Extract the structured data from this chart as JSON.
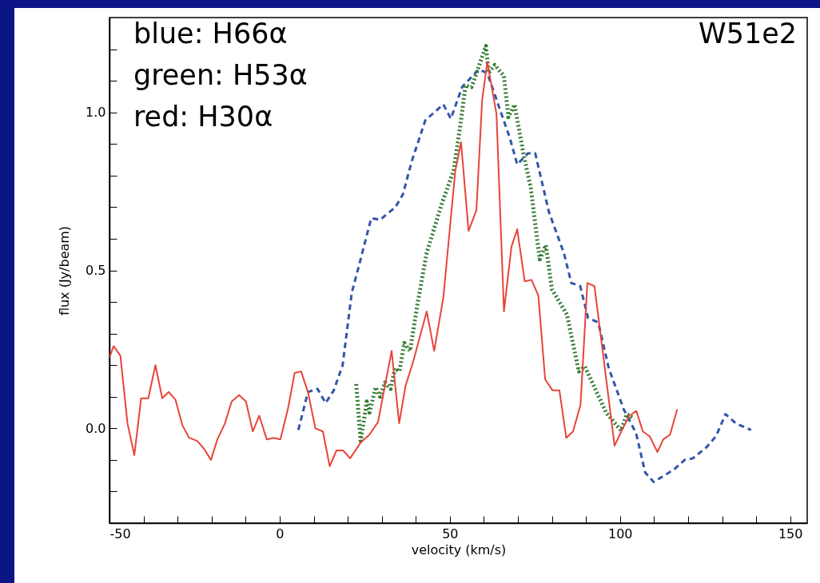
{
  "chart_data": {
    "type": "line",
    "xlabel": "velocity (km/s)",
    "ylabel": "flux (Jy/beam)",
    "annotations": [
      "blue: H66α",
      "green: H53α",
      "red: H30α",
      "W51e2"
    ],
    "xlim": [
      -50,
      155
    ],
    "ylim": [
      -0.3,
      1.3
    ],
    "xticks": [
      -50,
      {
        "value": -40,
        "label": null
      },
      {
        "value": -30,
        "label": null
      },
      {
        "value": -20,
        "label": null
      },
      {
        "value": -10,
        "label": null
      },
      0,
      {
        "value": 10,
        "label": null
      },
      {
        "value": 20,
        "label": null
      },
      {
        "value": 30,
        "label": null
      },
      {
        "value": 40,
        "label": null
      },
      50,
      {
        "value": 60,
        "label": null
      },
      {
        "value": 70,
        "label": null
      },
      {
        "value": 80,
        "label": null
      },
      {
        "value": 90,
        "label": null
      },
      100,
      {
        "value": 110,
        "label": null
      },
      {
        "value": 120,
        "label": null
      },
      {
        "value": 130,
        "label": null
      },
      {
        "value": 140,
        "label": null
      },
      150
    ],
    "yticks": [
      {
        "value": -0.2,
        "label": null
      },
      {
        "value": -0.1,
        "label": null
      },
      {
        "value": 0,
        "label": "0.0"
      },
      {
        "value": 0.1,
        "label": null
      },
      {
        "value": 0.2,
        "label": null
      },
      {
        "value": 0.3,
        "label": null
      },
      {
        "value": 0.4,
        "label": null
      },
      {
        "value": 0.5,
        "label": "0.5"
      },
      {
        "value": 0.6,
        "label": null
      },
      {
        "value": 0.7,
        "label": null
      },
      {
        "value": 0.8,
        "label": null
      },
      {
        "value": 0.9,
        "label": null
      },
      {
        "value": 1.0,
        "label": "1.0"
      },
      {
        "value": 1.1,
        "label": null
      },
      {
        "value": 1.2,
        "label": null
      }
    ],
    "series": [
      {
        "color": "#3355aa",
        "line_style": "dashed",
        "x": [
          5.5,
          8.3,
          11.1,
          13.5,
          15.9,
          18.5,
          21.2,
          23.3,
          26.9,
          29.5,
          34.0,
          36.2,
          38.8,
          42.8,
          45.4,
          48.1,
          50.3,
          53.6,
          58.4,
          61.0,
          65.0,
          67.6,
          69.8,
          72.9,
          75.1,
          79.1,
          83.5,
          85.7,
          88.3,
          90.6,
          93.6,
          96.7,
          101.1,
          104.7,
          107.4,
          109.9,
          115.9,
          119.0,
          121.4,
          125.4,
          128.2,
          131.0,
          134.1,
          138.5
        ],
        "values": [
          -0.005,
          0.115,
          0.125,
          0.08,
          0.12,
          0.2,
          0.43,
          0.515,
          0.665,
          0.66,
          0.7,
          0.74,
          0.845,
          0.975,
          1.0,
          1.025,
          0.98,
          1.08,
          1.135,
          1.125,
          1.0,
          0.92,
          0.835,
          0.87,
          0.87,
          0.685,
          0.555,
          0.46,
          0.45,
          0.35,
          0.335,
          0.19,
          0.06,
          -0.015,
          -0.14,
          -0.17,
          -0.13,
          -0.1,
          -0.095,
          -0.06,
          -0.025,
          0.045,
          0.015,
          -0.005
        ]
      },
      {
        "color": "#2e7a2e",
        "line_style": "dotted",
        "x": [
          22.5,
          23.8,
          25.6,
          26.4,
          28.2,
          29.5,
          30.9,
          32.6,
          33.9,
          35.2,
          36.6,
          38.3,
          40.6,
          43.2,
          47.6,
          51.1,
          52.9,
          54.6,
          56.4,
          60.6,
          61.4,
          63.2,
          65.9,
          67.2,
          69.0,
          71.6,
          73.8,
          76.4,
          78.2,
          80.0,
          84.4,
          87.9,
          89.7,
          95.9,
          100.3,
          102.0,
          104.2
        ],
        "values": [
          0.14,
          -0.04,
          0.085,
          0.05,
          0.13,
          0.1,
          0.145,
          0.125,
          0.19,
          0.18,
          0.27,
          0.245,
          0.4,
          0.555,
          0.71,
          0.815,
          0.945,
          1.085,
          1.08,
          1.21,
          1.125,
          1.15,
          1.115,
          0.985,
          1.025,
          0.87,
          0.76,
          0.535,
          0.58,
          0.44,
          0.36,
          0.18,
          0.195,
          0.05,
          -0.007,
          0.045,
          0.03
        ]
      },
      {
        "color": "#e8443a",
        "line_style": "solid",
        "x": [
          -50.0,
          -48.8,
          -46.8,
          -44.7,
          -42.7,
          -40.7,
          -38.6,
          -36.5,
          -34.5,
          -32.6,
          -30.6,
          -28.6,
          -26.6,
          -24.2,
          -22.2,
          -20.2,
          -18.3,
          -16.1,
          -14.1,
          -11.9,
          -9.9,
          -7.9,
          -6.0,
          -3.8,
          -1.7,
          0.2,
          2.4,
          4.4,
          6.3,
          8.3,
          10.5,
          12.7,
          14.7,
          16.7,
          18.6,
          20.7,
          23.8,
          26.4,
          28.9,
          32.9,
          35.1,
          37.0,
          39.2,
          43.2,
          45.4,
          48.1,
          51.6,
          53.3,
          55.5,
          57.8,
          59.5,
          61.0,
          63.7,
          65.9,
          68.1,
          69.8,
          72.0,
          74.0,
          76.0,
          78.0,
          80.2,
          82.2,
          84.2,
          86.2,
          88.4,
          90.4,
          92.5,
          98.4,
          100.8,
          102.8,
          104.8,
          106.7,
          108.7,
          111.0,
          112.7,
          114.7,
          116.8
        ],
        "values": [
          0.225,
          0.26,
          0.23,
          0.015,
          -0.085,
          0.095,
          0.095,
          0.2,
          0.095,
          0.115,
          0.09,
          0.01,
          -0.03,
          -0.04,
          -0.065,
          -0.1,
          -0.035,
          0.015,
          0.085,
          0.105,
          0.085,
          -0.01,
          0.04,
          -0.035,
          -0.03,
          -0.035,
          0.06,
          0.175,
          0.18,
          0.115,
          0.0,
          -0.01,
          -0.12,
          -0.07,
          -0.07,
          -0.095,
          -0.045,
          -0.02,
          0.02,
          0.245,
          0.016,
          0.135,
          0.21,
          0.37,
          0.245,
          0.415,
          0.815,
          0.905,
          0.625,
          0.69,
          1.04,
          1.16,
          0.995,
          0.37,
          0.575,
          0.63,
          0.465,
          0.47,
          0.42,
          0.155,
          0.12,
          0.12,
          -0.03,
          -0.01,
          0.075,
          0.46,
          0.45,
          -0.055,
          0.0,
          0.04,
          0.055,
          -0.01,
          -0.025,
          -0.075,
          -0.035,
          -0.02,
          0.06
        ]
      }
    ]
  }
}
